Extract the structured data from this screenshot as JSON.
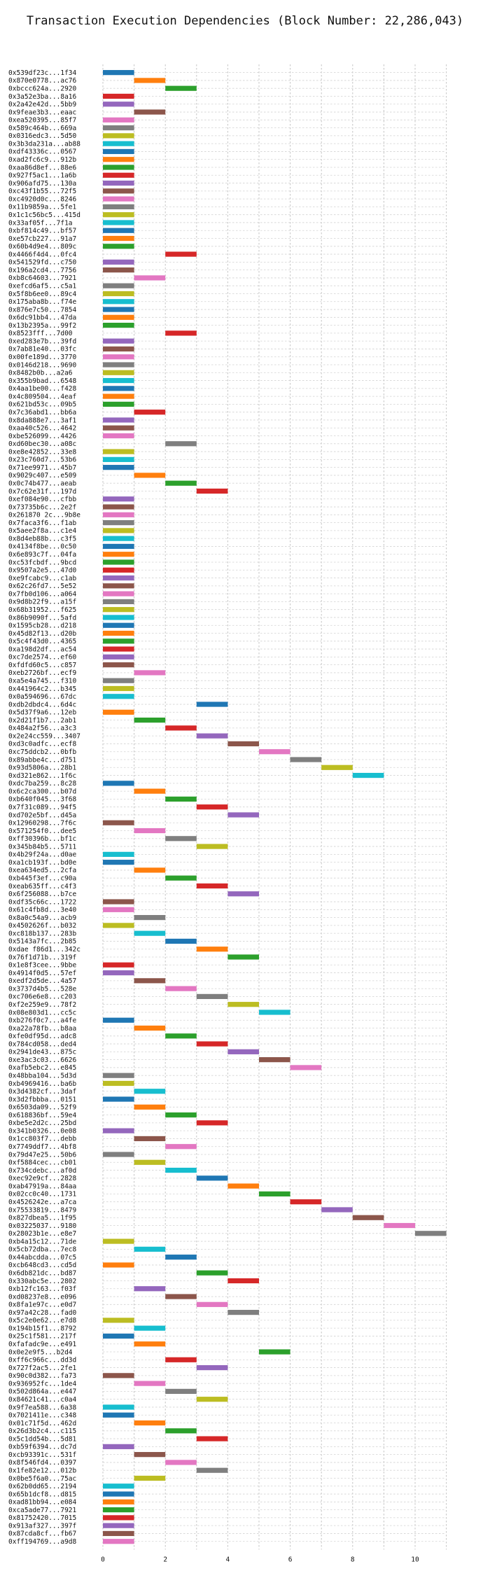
{
  "chart_data": {
    "type": "gantt",
    "title": "Transaction Execution Dependencies (Block Number: 22,286,043)",
    "xlabel": "",
    "ylabel": "",
    "xlim": [
      0,
      11.4
    ],
    "x_ticks": [
      0,
      2,
      4,
      6,
      8,
      10
    ],
    "grid": true,
    "palette": [
      "#1f77b4",
      "#ff7f0e",
      "#2ca02c",
      "#d62728",
      "#9467bd",
      "#8c564b",
      "#e377c2",
      "#7f7f7f",
      "#bcbd22",
      "#17becf"
    ],
    "tasks": [
      {
        "tx": "0x539df23c...1f34",
        "start": 0,
        "end": 1
      },
      {
        "tx": "0x870e0778...ac76",
        "start": 1,
        "end": 2
      },
      {
        "tx": "0xbccc624a...2920",
        "start": 2,
        "end": 3
      },
      {
        "tx": "0x3a52e3ba...8a16",
        "start": 0,
        "end": 1
      },
      {
        "tx": "0x2a42e42d...5bb9",
        "start": 0,
        "end": 1
      },
      {
        "tx": "0x9feae3b3...eaac",
        "start": 1,
        "end": 2
      },
      {
        "tx": "0xea520395...85f7",
        "start": 0,
        "end": 1
      },
      {
        "tx": "0x589c464b...669a",
        "start": 0,
        "end": 1
      },
      {
        "tx": "0x0316edc3...5d50",
        "start": 0,
        "end": 1
      },
      {
        "tx": "0x3b3da231a...ab88",
        "start": 0,
        "end": 1
      },
      {
        "tx": "0xdf43336c...0567",
        "start": 0,
        "end": 1
      },
      {
        "tx": "0xad2fc6c9...912b",
        "start": 0,
        "end": 1
      },
      {
        "tx": "0xaa86d8ef...88e6",
        "start": 0,
        "end": 1
      },
      {
        "tx": "0x927f5ac1...1a6b",
        "start": 0,
        "end": 1
      },
      {
        "tx": "0x906afd75...130a",
        "start": 0,
        "end": 1
      },
      {
        "tx": "0xc43f1b55...72f5",
        "start": 0,
        "end": 1
      },
      {
        "tx": "0xc4920d0c...8246",
        "start": 0,
        "end": 1
      },
      {
        "tx": "0x11b9859a...5fe1",
        "start": 0,
        "end": 1
      },
      {
        "tx": "0x1c1c56bc5...415d",
        "start": 0,
        "end": 1
      },
      {
        "tx": "0x33af05f...7f1a",
        "start": 0,
        "end": 1
      },
      {
        "tx": "0xbf814c49...bf57",
        "start": 0,
        "end": 1
      },
      {
        "tx": "0xe57cb227...91a7",
        "start": 0,
        "end": 1
      },
      {
        "tx": "0x60b4d9e4...809c",
        "start": 0,
        "end": 1
      },
      {
        "tx": "0x4466f4d4...0fc4",
        "start": 2,
        "end": 3
      },
      {
        "tx": "0x541529fd...c750",
        "start": 0,
        "end": 1
      },
      {
        "tx": "0x196a2cd4...7756",
        "start": 0,
        "end": 1
      },
      {
        "tx": "0xb8c64603...7921",
        "start": 1,
        "end": 2
      },
      {
        "tx": "0xefcd6af5...c5a1",
        "start": 0,
        "end": 1
      },
      {
        "tx": "0x5f8b6ee0...89c4",
        "start": 0,
        "end": 1
      },
      {
        "tx": "0x175aba8b...f74e",
        "start": 0,
        "end": 1
      },
      {
        "tx": "0x876e7c50...7854",
        "start": 0,
        "end": 1
      },
      {
        "tx": "0x6dc91bb4...47da",
        "start": 0,
        "end": 1
      },
      {
        "tx": "0x13b2395a...99f2",
        "start": 0,
        "end": 1
      },
      {
        "tx": "0x8523fff...7d00",
        "start": 2,
        "end": 3
      },
      {
        "tx": "0xed283e7b...39fd",
        "start": 0,
        "end": 1
      },
      {
        "tx": "0x7ab81e40...03fc",
        "start": 0,
        "end": 1
      },
      {
        "tx": "0x00fe189d...3770",
        "start": 0,
        "end": 1
      },
      {
        "tx": "0x0146d218...9690",
        "start": 0,
        "end": 1
      },
      {
        "tx": "0x8482b0b...a2a6",
        "start": 0,
        "end": 1
      },
      {
        "tx": "0x355b9bad...6548",
        "start": 0,
        "end": 1
      },
      {
        "tx": "0x4aa1be00...f428",
        "start": 0,
        "end": 1
      },
      {
        "tx": "0x4c809504...4eaf",
        "start": 0,
        "end": 1
      },
      {
        "tx": "0x621bd53c...09b5",
        "start": 0,
        "end": 1
      },
      {
        "tx": "0x7c36abd1...bb6a",
        "start": 1,
        "end": 2
      },
      {
        "tx": "0x8da888e7...3af1",
        "start": 0,
        "end": 1
      },
      {
        "tx": "0xaa40c526...4642",
        "start": 0,
        "end": 1
      },
      {
        "tx": "0xbe526099...4426",
        "start": 0,
        "end": 1
      },
      {
        "tx": "0xd60bec30...a08c",
        "start": 2,
        "end": 3
      },
      {
        "tx": "0xe8e42852...33e8",
        "start": 0,
        "end": 1
      },
      {
        "tx": "0x23c760d7...53b6",
        "start": 0,
        "end": 1
      },
      {
        "tx": "0x71ee9971...45b7",
        "start": 0,
        "end": 1
      },
      {
        "tx": "0x9029c407...e509",
        "start": 1,
        "end": 2
      },
      {
        "tx": "0x0c74b477...aeab",
        "start": 2,
        "end": 3
      },
      {
        "tx": "0x7c62e31f...197d",
        "start": 3,
        "end": 4
      },
      {
        "tx": "0xef084e90...cfbb",
        "start": 0,
        "end": 1
      },
      {
        "tx": "0x73735b6c...2e2f",
        "start": 0,
        "end": 1
      },
      {
        "tx": "0x261870 2c...9b8e",
        "start": 0,
        "end": 1
      },
      {
        "tx": "0x7faca3f6...f1ab",
        "start": 0,
        "end": 1
      },
      {
        "tx": "0x5aee2f8a...c1e4",
        "start": 0,
        "end": 1
      },
      {
        "tx": "0x8d4eb88b...c3f5",
        "start": 0,
        "end": 1
      },
      {
        "tx": "0x4134f8be...0c50",
        "start": 0,
        "end": 1
      },
      {
        "tx": "0x6e893c7f...04fa",
        "start": 0,
        "end": 1
      },
      {
        "tx": "0xc53fcbdf...9bcd",
        "start": 0,
        "end": 1
      },
      {
        "tx": "0x9507a2e5...47d0",
        "start": 0,
        "end": 1
      },
      {
        "tx": "0xe9fcabc9...c1ab",
        "start": 0,
        "end": 1
      },
      {
        "tx": "0x62c26fd7...5e52",
        "start": 0,
        "end": 1
      },
      {
        "tx": "0x7fb0d106...a064",
        "start": 0,
        "end": 1
      },
      {
        "tx": "0x9d8b22f9...a15f",
        "start": 0,
        "end": 1
      },
      {
        "tx": "0x68b31952...f625",
        "start": 0,
        "end": 1
      },
      {
        "tx": "0x86b9090f...5afd",
        "start": 0,
        "end": 1
      },
      {
        "tx": "0x1595cb28...d218",
        "start": 0,
        "end": 1
      },
      {
        "tx": "0x45d82f13...d20b",
        "start": 0,
        "end": 1
      },
      {
        "tx": "0x5c4f43d0...4365",
        "start": 0,
        "end": 1
      },
      {
        "tx": "0xa198d2df...ac54",
        "start": 0,
        "end": 1
      },
      {
        "tx": "0xc7de2574...ef60",
        "start": 0,
        "end": 1
      },
      {
        "tx": "0xfdfd60c5...c857",
        "start": 0,
        "end": 1
      },
      {
        "tx": "0xeb2726bf...ecf9",
        "start": 1,
        "end": 2
      },
      {
        "tx": "0xa5e4a745...f310",
        "start": 0,
        "end": 1
      },
      {
        "tx": "0x441964c2...b345",
        "start": 0,
        "end": 1
      },
      {
        "tx": "0x0a594696...67dc",
        "start": 0,
        "end": 1
      },
      {
        "tx": "0xdb2dbdc4...6d4c",
        "start": 3,
        "end": 4
      },
      {
        "tx": "0x5d37f9a6...12eb",
        "start": 0,
        "end": 1
      },
      {
        "tx": "0x2d21f1b7...2ab1",
        "start": 1,
        "end": 2
      },
      {
        "tx": "0x484a2f56...a3c3",
        "start": 2,
        "end": 3
      },
      {
        "tx": "0x2e24cc559...3407",
        "start": 3,
        "end": 4
      },
      {
        "tx": "0xd3c0adfc...ecf8",
        "start": 4,
        "end": 5
      },
      {
        "tx": "0xc75ddcb2...0bfb",
        "start": 5,
        "end": 6
      },
      {
        "tx": "0x89abbe4c...d751",
        "start": 6,
        "end": 7
      },
      {
        "tx": "0x93d5806a...28b1",
        "start": 7,
        "end": 8
      },
      {
        "tx": "0xd321e862...1f6c",
        "start": 8,
        "end": 9
      },
      {
        "tx": "0xdc7ba259...8c28",
        "start": 0,
        "end": 1
      },
      {
        "tx": "0x6c2ca300...b07d",
        "start": 1,
        "end": 2
      },
      {
        "tx": "0xb640f045...3f68",
        "start": 2,
        "end": 3
      },
      {
        "tx": "0x7f31c089...94f5",
        "start": 3,
        "end": 4
      },
      {
        "tx": "0xd702e5bf...d45a",
        "start": 4,
        "end": 5
      },
      {
        "tx": "0x12960298...7f6c",
        "start": 0,
        "end": 1
      },
      {
        "tx": "0x571254f0...dee5",
        "start": 1,
        "end": 2
      },
      {
        "tx": "0xff30396b...bf1c",
        "start": 2,
        "end": 3
      },
      {
        "tx": "0x345b84b5...5711",
        "start": 3,
        "end": 4
      },
      {
        "tx": "0x4b29f24a...d0ae",
        "start": 0,
        "end": 1
      },
      {
        "tx": "0xa1cb193f...bd0e",
        "start": 0,
        "end": 1
      },
      {
        "tx": "0xea634ed5...2cfa",
        "start": 1,
        "end": 2
      },
      {
        "tx": "0xb445f3ef...c90a",
        "start": 2,
        "end": 3
      },
      {
        "tx": "0xeab635ff...c4f3",
        "start": 3,
        "end": 4
      },
      {
        "tx": "0x6f256088...b7ce",
        "start": 4,
        "end": 5
      },
      {
        "tx": "0xdf35c66c...1722",
        "start": 0,
        "end": 1
      },
      {
        "tx": "0x61c4fb8d...3e40",
        "start": 0,
        "end": 1
      },
      {
        "tx": "0x8a0c54a9...acb9",
        "start": 1,
        "end": 2
      },
      {
        "tx": "0x4502626f...b032",
        "start": 0,
        "end": 1
      },
      {
        "tx": "0xc818b137...283b",
        "start": 1,
        "end": 2
      },
      {
        "tx": "0x5143a7fc...2b85",
        "start": 2,
        "end": 3
      },
      {
        "tx": "0xdae f86d1...342c",
        "start": 3,
        "end": 4
      },
      {
        "tx": "0x76f1d71b...319f",
        "start": 4,
        "end": 5
      },
      {
        "tx": "0x1e8f3cee...9bbe",
        "start": 0,
        "end": 1
      },
      {
        "tx": "0x4914f0d5...57ef",
        "start": 0,
        "end": 1
      },
      {
        "tx": "0xedf2d5de...4a57",
        "start": 1,
        "end": 2
      },
      {
        "tx": "0x3737d4b5...528e",
        "start": 2,
        "end": 3
      },
      {
        "tx": "0xc706e6e8...c203",
        "start": 3,
        "end": 4
      },
      {
        "tx": "0xf2e259e9...78f2",
        "start": 4,
        "end": 5
      },
      {
        "tx": "0x08e803d1...cc5c",
        "start": 5,
        "end": 6
      },
      {
        "tx": "0xb276f0c7...a4fe",
        "start": 0,
        "end": 1
      },
      {
        "tx": "0xa22a78fb...b8aa",
        "start": 1,
        "end": 2
      },
      {
        "tx": "0xfe0df95d...adc8",
        "start": 2,
        "end": 3
      },
      {
        "tx": "0x784cd058...ded4",
        "start": 3,
        "end": 4
      },
      {
        "tx": "0x2941de43...875c",
        "start": 4,
        "end": 5
      },
      {
        "tx": "0xe3ac3c03...6626",
        "start": 5,
        "end": 6
      },
      {
        "tx": "0xafb5ebc2...e845",
        "start": 6,
        "end": 7
      },
      {
        "tx": "0x48bba104...5d3d",
        "start": 0,
        "end": 1
      },
      {
        "tx": "0xb4969416...ba6b",
        "start": 0,
        "end": 1
      },
      {
        "tx": "0x3d4382cf...3daf",
        "start": 1,
        "end": 2
      },
      {
        "tx": "0x3d2fbbba...0151",
        "start": 0,
        "end": 1
      },
      {
        "tx": "0x6503da09...52f9",
        "start": 1,
        "end": 2
      },
      {
        "tx": "0x618836bf...59e4",
        "start": 2,
        "end": 3
      },
      {
        "tx": "0xbe5e2d2c...25bd",
        "start": 3,
        "end": 4
      },
      {
        "tx": "0x341b0326...0e08",
        "start": 0,
        "end": 1
      },
      {
        "tx": "0x1cc803f7...debb",
        "start": 1,
        "end": 2
      },
      {
        "tx": "0x7749ddf7...4bf8",
        "start": 2,
        "end": 3
      },
      {
        "tx": "0x79d47e25...50b6",
        "start": 0,
        "end": 1
      },
      {
        "tx": "0xf5884cec...cb01",
        "start": 1,
        "end": 2
      },
      {
        "tx": "0x734cdebc...af0d",
        "start": 2,
        "end": 3
      },
      {
        "tx": "0xec92e9cf...2828",
        "start": 3,
        "end": 4
      },
      {
        "tx": "0xab47919a...84aa",
        "start": 4,
        "end": 5
      },
      {
        "tx": "0x02cc0c40...1731",
        "start": 5,
        "end": 6
      },
      {
        "tx": "0x4526242e...a7ca",
        "start": 6,
        "end": 7
      },
      {
        "tx": "0x75533819...8479",
        "start": 7,
        "end": 8
      },
      {
        "tx": "0x827dbea5...1f95",
        "start": 8,
        "end": 9
      },
      {
        "tx": "0x03225037...9180",
        "start": 9,
        "end": 10
      },
      {
        "tx": "0x28023b1e...e8e7",
        "start": 10,
        "end": 11
      },
      {
        "tx": "0xb4a15c12...71de",
        "start": 0,
        "end": 1
      },
      {
        "tx": "0x5cb72dba...7ec8",
        "start": 1,
        "end": 2
      },
      {
        "tx": "0x44abcdda...07c5",
        "start": 2,
        "end": 3
      },
      {
        "tx": "0xcb648cd3...cd5d",
        "start": 0,
        "end": 1
      },
      {
        "tx": "0x6db821dc...bd87",
        "start": 3,
        "end": 4
      },
      {
        "tx": "0x330abc5e...2802",
        "start": 4,
        "end": 5
      },
      {
        "tx": "0xb12fc163...f03f",
        "start": 1,
        "end": 2
      },
      {
        "tx": "0xd08237e8...e096",
        "start": 2,
        "end": 3
      },
      {
        "tx": "0x8fa1e97c...e0d7",
        "start": 3,
        "end": 4
      },
      {
        "tx": "0x97a42c28...fad0",
        "start": 4,
        "end": 5
      },
      {
        "tx": "0x5c2e0e62...e7d8",
        "start": 0,
        "end": 1
      },
      {
        "tx": "0x194b15f1...8792",
        "start": 1,
        "end": 2
      },
      {
        "tx": "0x25c1f581...217f",
        "start": 0,
        "end": 1
      },
      {
        "tx": "0xfafadc9e...e491",
        "start": 1,
        "end": 2
      },
      {
        "tx": "0x0e2e9f5...b2d4",
        "start": 5,
        "end": 6
      },
      {
        "tx": "0xff6c966c...dd3d",
        "start": 2,
        "end": 3
      },
      {
        "tx": "0x727f2ac5...2fe1",
        "start": 3,
        "end": 4
      },
      {
        "tx": "0x90c0d382...fa73",
        "start": 0,
        "end": 1
      },
      {
        "tx": "0x936952fc...1de4",
        "start": 1,
        "end": 2
      },
      {
        "tx": "0x502d864a...e447",
        "start": 2,
        "end": 3
      },
      {
        "tx": "0x84621c41...c0a4",
        "start": 3,
        "end": 4
      },
      {
        "tx": "0x9f7ea588...6a38",
        "start": 0,
        "end": 1
      },
      {
        "tx": "0x7021411e...c348",
        "start": 0,
        "end": 1
      },
      {
        "tx": "0x01c71f5d...462d",
        "start": 1,
        "end": 2
      },
      {
        "tx": "0x26d3b2c4...c115",
        "start": 2,
        "end": 3
      },
      {
        "tx": "0x5c1dd54b...5d81",
        "start": 3,
        "end": 4
      },
      {
        "tx": "0xb59f6394...dc7d",
        "start": 0,
        "end": 1
      },
      {
        "tx": "0xcb93391c...531f",
        "start": 1,
        "end": 2
      },
      {
        "tx": "0x8f546fd4...0397",
        "start": 2,
        "end": 3
      },
      {
        "tx": "0x1fe82e12...012b",
        "start": 3,
        "end": 4
      },
      {
        "tx": "0x0be5f6a0...75ac",
        "start": 1,
        "end": 2
      },
      {
        "tx": "0x62b0dd65...2194",
        "start": 0,
        "end": 1
      },
      {
        "tx": "0x65b1dcf8...d815",
        "start": 0,
        "end": 1
      },
      {
        "tx": "0xad81bb94...e084",
        "start": 0,
        "end": 1
      },
      {
        "tx": "0xca5ade77...7921",
        "start": 0,
        "end": 1
      },
      {
        "tx": "0x81752420...7015",
        "start": 0,
        "end": 1
      },
      {
        "tx": "0x913af327...397f",
        "start": 0,
        "end": 1
      },
      {
        "tx": "0x87cda8cf...fb67",
        "start": 0,
        "end": 1
      },
      {
        "tx": "0xff194769...a9d8",
        "start": 0,
        "end": 1
      }
    ]
  }
}
